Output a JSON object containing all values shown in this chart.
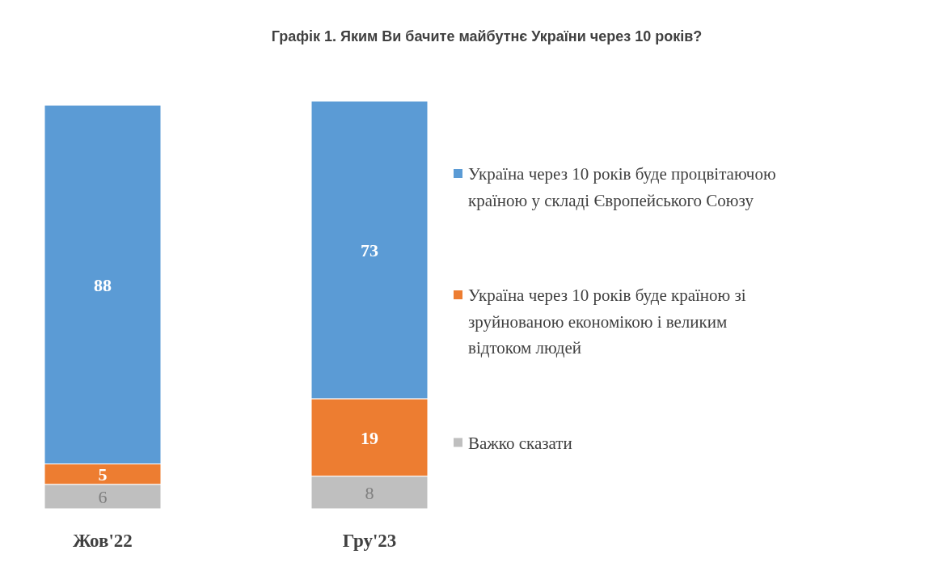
{
  "chart_data": {
    "type": "bar",
    "title": "Графік 1. Яким Ви бачите майбутнє України через 10 років?",
    "categories": [
      "Жов'22",
      "Гру'23"
    ],
    "stacked": true,
    "data_labels": true,
    "legend": "right",
    "series": [
      {
        "name": "Важко сказати",
        "color": "#bfbfbf",
        "values": [
          6,
          8
        ]
      },
      {
        "name": "Україна через 10 років буде країною зі зруйнованою економікою і великим відтоком людей",
        "color": "#ed7d31",
        "values": [
          5,
          19
        ]
      },
      {
        "name": "Україна через 10 років буде процвітаючою країною у складі Європейського Союзу",
        "color": "#5b9bd5",
        "values": [
          88,
          73
        ]
      }
    ]
  }
}
